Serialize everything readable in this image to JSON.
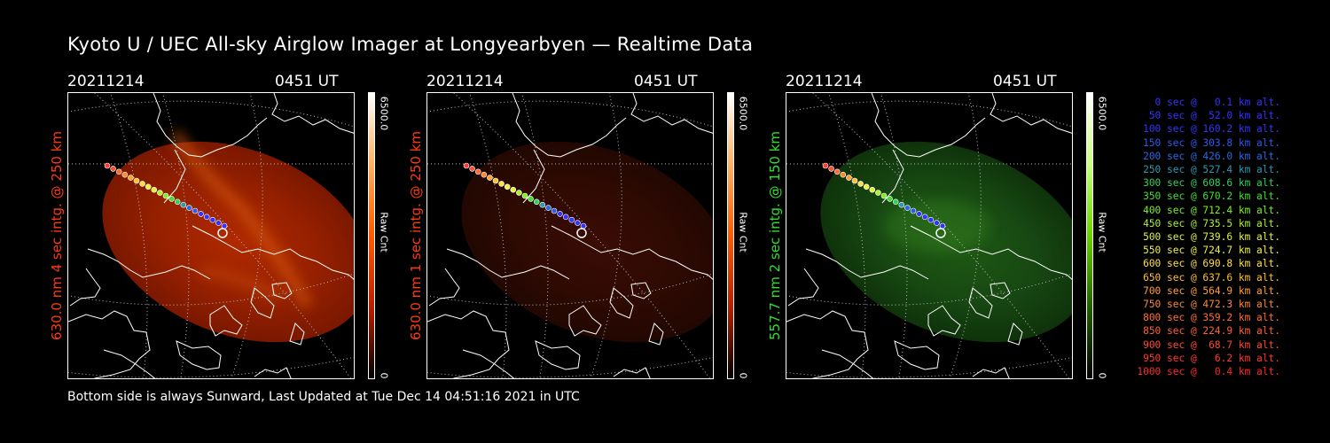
{
  "title": "Kyoto U / UEC All-sky Airglow Imager at Longyearbyen — Realtime Data",
  "footer": "Bottom side is always Sunward, Last Updated at Tue Dec 14 04:51:16 2021 in UTC",
  "panels": [
    {
      "date": "20211214",
      "time": "0451 UT",
      "ylabel": "630.0 nm 4 sec intg. @ 250 km",
      "label_color": "#ff3a10",
      "cbar_max": "6500.0",
      "cbar_min": "0",
      "cbar_unit": "Raw Cnt",
      "cbar_colors": [
        "#ffffff",
        "#ffb060",
        "#ff5a00",
        "#b82000",
        "#000000"
      ],
      "glow_colors": [
        "#b02a00",
        "#952000",
        "#7a1800"
      ]
    },
    {
      "date": "20211214",
      "time": "0451 UT",
      "ylabel": "630.0 nm 1 sec intg. @ 250 km",
      "label_color": "#ff3a10",
      "cbar_max": "6500.0",
      "cbar_min": "0",
      "cbar_unit": "Raw Cnt",
      "cbar_colors": [
        "#ffffff",
        "#ffb060",
        "#ff5a00",
        "#b82000",
        "#000000"
      ],
      "glow_colors": [
        "#3a0c04",
        "#2e0a03",
        "#220702"
      ]
    },
    {
      "date": "20211214",
      "time": "0451 UT",
      "ylabel": "557.7 nm 2 sec intg. @ 150 km",
      "label_color": "#30e030",
      "cbar_max": "6500.0",
      "cbar_min": "0",
      "cbar_unit": "Raw Cnt",
      "cbar_colors": [
        "#ffffff",
        "#c8ff80",
        "#6ad000",
        "#226000",
        "#000000"
      ],
      "glow_colors": [
        "#1f5a14",
        "#174812",
        "#0f320b"
      ]
    }
  ],
  "legend": [
    {
      "text": "0 sec @   0.1 km alt.",
      "color": "#3333ff"
    },
    {
      "text": "50 sec @  52.0 km alt.",
      "color": "#3333ff"
    },
    {
      "text": "100 sec @ 160.2 km alt.",
      "color": "#3333ff"
    },
    {
      "text": "150 sec @ 303.8 km alt.",
      "color": "#2a5af0"
    },
    {
      "text": "200 sec @ 426.0 km alt.",
      "color": "#2a6ae0"
    },
    {
      "text": "250 sec @ 527.4 km alt.",
      "color": "#2a9ab0"
    },
    {
      "text": "300 sec @ 608.6 km alt.",
      "color": "#30d060"
    },
    {
      "text": "350 sec @ 670.2 km alt.",
      "color": "#40e030"
    },
    {
      "text": "400 sec @ 712.4 km alt.",
      "color": "#80f020"
    },
    {
      "text": "450 sec @ 735.5 km alt.",
      "color": "#b0f030"
    },
    {
      "text": "500 sec @ 739.6 km alt.",
      "color": "#e0f040"
    },
    {
      "text": "550 sec @ 724.7 km alt.",
      "color": "#f0f040"
    },
    {
      "text": "600 sec @ 690.8 km alt.",
      "color": "#ffe040"
    },
    {
      "text": "650 sec @ 637.6 km alt.",
      "color": "#ffc030"
    },
    {
      "text": "700 sec @ 564.9 km alt.",
      "color": "#ffa030"
    },
    {
      "text": "750 sec @ 472.3 km alt.",
      "color": "#ff8830"
    },
    {
      "text": "800 sec @ 359.2 km alt.",
      "color": "#ff7030"
    },
    {
      "text": "850 sec @ 224.9 km alt.",
      "color": "#ff6030"
    },
    {
      "text": "900 sec @  68.7 km alt.",
      "color": "#ff4a30"
    },
    {
      "text": "950 sec @   6.2 km alt.",
      "color": "#ff3a30"
    },
    {
      "text": "1000 sec @   0.4 km alt.",
      "color": "#ff2a2a"
    }
  ]
}
